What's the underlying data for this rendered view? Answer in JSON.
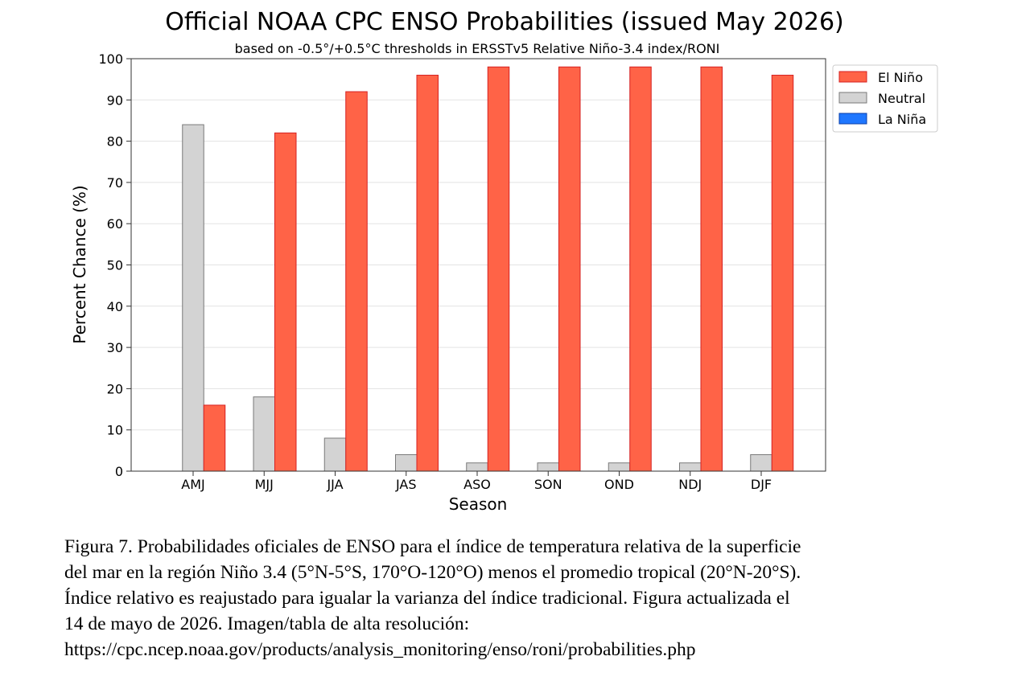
{
  "chart_data": {
    "type": "bar",
    "title": "Official NOAA CPC ENSO Probabilities (issued May 2026)",
    "subtitle": "based on -0.5°/+0.5°C thresholds in ERSSTv5 Relative Niño-3.4 index/RONI",
    "xlabel": "Season",
    "ylabel": "Percent Chance (%)",
    "ylim": [
      0,
      100
    ],
    "yticks": [
      "0",
      "10",
      "20",
      "30",
      "40",
      "50",
      "60",
      "70",
      "80",
      "90",
      "100"
    ],
    "grid": true,
    "legend_position": "upper-right-outside",
    "categories": [
      "AMJ",
      "MJJ",
      "JJA",
      "JAS",
      "ASO",
      "SON",
      "OND",
      "NDJ",
      "DJF"
    ],
    "series": [
      {
        "name": "La Niña",
        "color": "#1f77ff",
        "edge": "#0b3fa8",
        "values": [
          0,
          0,
          0,
          0,
          0,
          0,
          0,
          0,
          0
        ]
      },
      {
        "name": "Neutral",
        "color": "#d3d3d3",
        "edge": "#7a7a7a",
        "values": [
          84,
          18,
          8,
          4,
          2,
          2,
          2,
          2,
          4
        ]
      },
      {
        "name": "El Niño",
        "color": "#ff6347",
        "edge": "#d62020",
        "values": [
          16,
          82,
          92,
          96,
          98,
          98,
          98,
          98,
          96
        ]
      }
    ],
    "legend_order": [
      "El Niño",
      "Neutral",
      "La Niña"
    ]
  },
  "caption": {
    "lines": [
      "Figura 7. Probabilidades oficiales de ENSO para el índice de temperatura relativa de la superficie",
      "del mar en la región Niño 3.4 (5°N-5°S, 170°O-120°O) menos el promedio tropical (20°N-20°S).",
      "Índice relativo es reajustado para igualar la varianza del índice tradicional. Figura actualizada el",
      "14 de mayo de 2026. Imagen/tabla de alta resolución:",
      "https://cpc.ncep.noaa.gov/products/analysis_monitoring/enso/roni/probabilities.php"
    ]
  }
}
